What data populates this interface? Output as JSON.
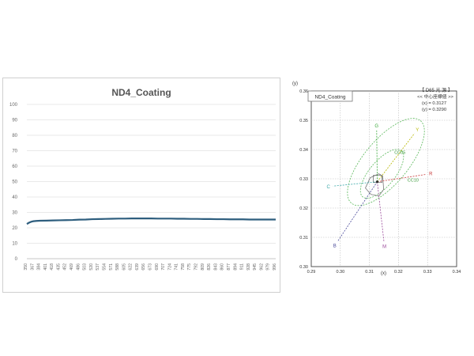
{
  "chart_data": [
    {
      "type": "line",
      "title": "ND4_Coating",
      "xlabel": "",
      "ylabel": "",
      "ylim": [
        0,
        100
      ],
      "yticks": [
        0,
        10,
        20,
        30,
        40,
        50,
        60,
        70,
        80,
        90,
        100
      ],
      "x_tick_labels": [
        "350",
        "367",
        "384",
        "401",
        "418",
        "435",
        "452",
        "469",
        "486",
        "503",
        "520",
        "537",
        "554",
        "571",
        "588",
        "605",
        "622",
        "639",
        "656",
        "673",
        "690",
        "707",
        "724",
        "741",
        "758",
        "775",
        "792",
        "809",
        "826",
        "843",
        "860",
        "877",
        "894",
        "911",
        "928",
        "945",
        "962",
        "979",
        "996"
      ],
      "grid": "horizontal",
      "series": [
        {
          "color": "#2e5e7e",
          "x": [
            350,
            356,
            362,
            367,
            375,
            384,
            401,
            418,
            435,
            452,
            469,
            486,
            503,
            520,
            537,
            554,
            571,
            588,
            605,
            622,
            639,
            656,
            673,
            690,
            707,
            724,
            741,
            758,
            775,
            792,
            809,
            826,
            843,
            860,
            877,
            894,
            911,
            928,
            945,
            962,
            979,
            996
          ],
          "values": [
            22.5,
            23.4,
            24.0,
            24.3,
            24.5,
            24.6,
            24.7,
            24.8,
            24.9,
            25.0,
            25.1,
            25.3,
            25.4,
            25.6,
            25.7,
            25.8,
            25.9,
            26.0,
            26.0,
            26.1,
            26.1,
            26.1,
            26.1,
            26.0,
            26.0,
            26.0,
            25.9,
            25.9,
            25.8,
            25.8,
            25.7,
            25.7,
            25.6,
            25.6,
            25.5,
            25.5,
            25.5,
            25.4,
            25.4,
            25.4,
            25.4,
            25.4
          ]
        }
      ]
    },
    {
      "type": "scatter",
      "title": "ND4_Coating",
      "xlabel": "(x)",
      "ylabel": "(y)",
      "xlim": [
        0.29,
        0.34
      ],
      "ylim": [
        0.3,
        0.36
      ],
      "xticks": [
        "0.29",
        "0.30",
        "0.31",
        "0.32",
        "0.33",
        "0.34"
      ],
      "yticks": [
        "0.30",
        "0.31",
        "0.32",
        "0.33",
        "0.34",
        "0.35",
        "0.36"
      ],
      "grid": "dotted",
      "legend_title": "【 D65 光 源 】",
      "legend_subtitle": "<< 中心座標値 >>",
      "legend_x": "(x) = 0.3127",
      "legend_y": "(y) = 0.3290",
      "measured_point": {
        "x": 0.3127,
        "y": 0.329
      },
      "color_lines": [
        {
          "label": "G",
          "x": 0.3125,
          "y": 0.3465,
          "color": "#3aa83a"
        },
        {
          "label": "Y",
          "x": 0.3255,
          "y": 0.3455,
          "color": "#b8b800"
        },
        {
          "label": "R",
          "x": 0.3295,
          "y": 0.3315,
          "color": "#c83a3a"
        },
        {
          "label": "M",
          "x": 0.315,
          "y": 0.3085,
          "color": "#9a4a9a"
        },
        {
          "label": "B",
          "x": 0.299,
          "y": 0.3085,
          "color": "#4a4a9a"
        },
        {
          "label": "C",
          "x": 0.2975,
          "y": 0.3275,
          "color": "#3aa8a8"
        }
      ],
      "ellipse_labels": [
        {
          "label": "CC05",
          "x": 0.3205,
          "y": 0.3385
        },
        {
          "label": "CC10",
          "x": 0.325,
          "y": 0.329
        }
      ],
      "colors": {
        "line": "#2e5e7e",
        "ellipse": "#5ab85a",
        "grid": "#bbbbbb"
      }
    }
  ]
}
